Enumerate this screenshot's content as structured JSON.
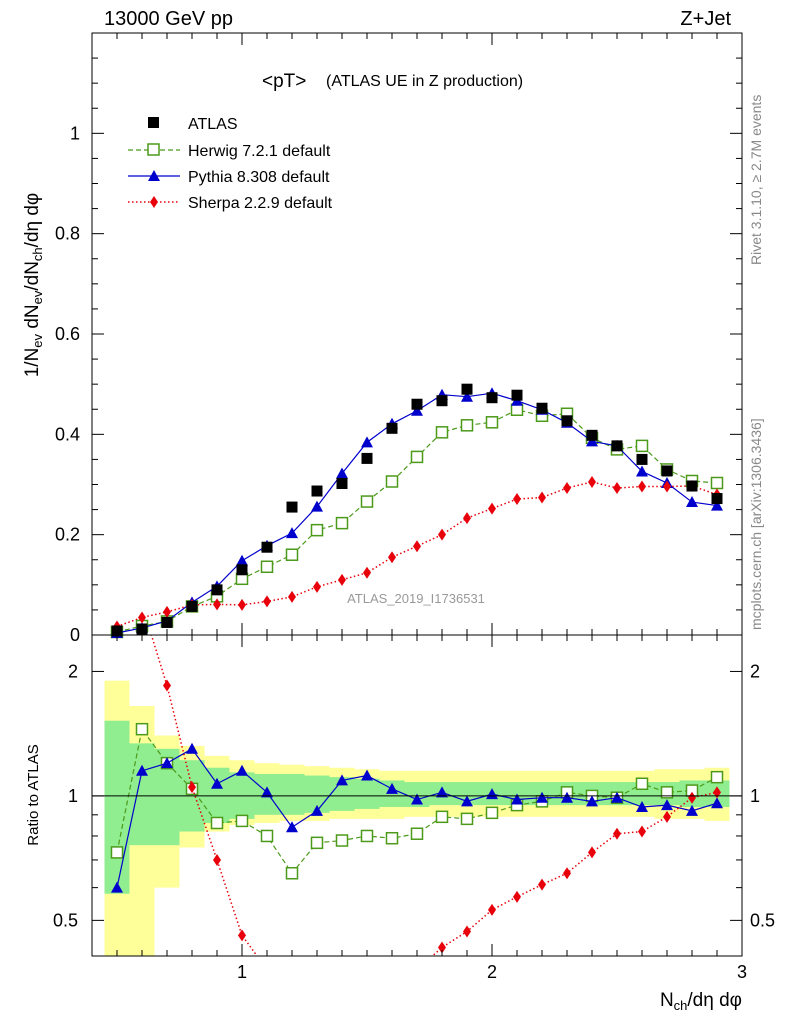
{
  "header": {
    "left": "13000 GeV pp",
    "right": "Z+Jet"
  },
  "side_text": {
    "rivet": "Rivet 3.1.10, ≥ 2.7M events",
    "mcplots": "mcplots.cern.ch [arXiv:1306.3436]"
  },
  "watermark": "ATLAS_2019_I1736531",
  "chart_data": {
    "type": "scatter",
    "title": "<pT>",
    "subtitle": "(ATLAS UE in Z production)",
    "xlabel": "N_ch/dη dφ",
    "ylabel": "1/N_ev dN_ev/dN_ch/dη dφ",
    "ratio_ylabel": "Ratio to ATLAS",
    "xlim": [
      0.4,
      3.0
    ],
    "ylim": [
      0,
      1.2
    ],
    "ratio_ylim": [
      0.41,
      2.45
    ],
    "ratio_scale": "log",
    "x_ticks": [
      "1",
      "2",
      "3"
    ],
    "y_ticks": [
      "0",
      "0.2",
      "0.4",
      "0.6",
      "0.8",
      "1"
    ],
    "ratio_ticks": [
      "0.5",
      "1",
      "2"
    ],
    "legend_position": "top-left",
    "x": [
      0.5,
      0.6,
      0.7,
      0.8,
      0.9,
      1.0,
      1.1,
      1.2,
      1.3,
      1.4,
      1.5,
      1.6,
      1.7,
      1.8,
      1.9,
      2.0,
      2.1,
      2.2,
      2.3,
      2.4,
      2.5,
      2.6,
      2.7,
      2.8,
      2.9
    ],
    "series": [
      {
        "name": "ATLAS",
        "color": "#000000",
        "marker": "square",
        "line": "none",
        "values": [
          0.008,
          0.012,
          0.025,
          0.057,
          0.09,
          0.13,
          0.175,
          0.255,
          0.287,
          0.302,
          0.352,
          0.412,
          0.46,
          0.467,
          0.49,
          0.473,
          0.478,
          0.452,
          0.427,
          0.398,
          0.377,
          0.35,
          0.327,
          0.297,
          0.272
        ]
      },
      {
        "name": "Herwig 7.2.1 default",
        "color": "#4c9a1a",
        "marker": "open-square",
        "line": "dashed",
        "values": [
          0.006,
          0.018,
          0.027,
          0.057,
          0.077,
          0.112,
          0.136,
          0.16,
          0.209,
          0.223,
          0.266,
          0.306,
          0.355,
          0.404,
          0.418,
          0.424,
          0.449,
          0.437,
          0.441,
          0.393,
          0.37,
          0.377,
          0.33,
          0.307,
          0.303
        ]
      },
      {
        "name": "Pythia 8.308 default",
        "color": "#0000cc",
        "marker": "triangle",
        "line": "solid",
        "values": [
          0.004,
          0.014,
          0.028,
          0.065,
          0.097,
          0.148,
          0.178,
          0.203,
          0.256,
          0.322,
          0.384,
          0.421,
          0.447,
          0.479,
          0.475,
          0.482,
          0.467,
          0.449,
          0.423,
          0.386,
          0.377,
          0.326,
          0.303,
          0.265,
          0.258
        ]
      },
      {
        "name": "Sherpa 2.2.9 default",
        "color": "#e8000b",
        "marker": "diamond",
        "line": "dotted",
        "values": [
          0.017,
          0.035,
          0.046,
          0.06,
          0.061,
          0.06,
          0.067,
          0.076,
          0.096,
          0.11,
          0.124,
          0.155,
          0.177,
          0.2,
          0.233,
          0.252,
          0.271,
          0.274,
          0.293,
          0.305,
          0.293,
          0.296,
          0.296,
          0.297,
          0.28
        ]
      }
    ],
    "ratio": {
      "herwig": [
        0.73,
        1.45,
        1.2,
        1.04,
        0.86,
        0.87,
        0.8,
        0.65,
        0.77,
        0.78,
        0.8,
        0.79,
        0.81,
        0.89,
        0.88,
        0.91,
        0.95,
        0.97,
        1.02,
        1.0,
        0.99,
        1.07,
        1.02,
        1.03,
        1.11
      ],
      "pythia": [
        0.6,
        1.15,
        1.2,
        1.3,
        1.07,
        1.15,
        1.02,
        0.84,
        0.92,
        1.09,
        1.12,
        1.04,
        0.98,
        1.02,
        0.97,
        1.01,
        0.98,
        0.99,
        0.99,
        0.97,
        0.99,
        0.94,
        0.95,
        0.92,
        0.96
      ],
      "sherpa": [
        2.9,
        2.9,
        1.85,
        1.05,
        0.7,
        0.46,
        0.38,
        0.3,
        0.33,
        0.36,
        0.35,
        0.38,
        0.38,
        0.43,
        0.47,
        0.53,
        0.57,
        0.61,
        0.65,
        0.73,
        0.81,
        0.82,
        0.89,
        0.99,
        1.02
      ],
      "band_stat": [
        [
          0.58,
          1.52
        ],
        [
          0.76,
          1.34
        ],
        [
          0.76,
          1.3
        ],
        [
          0.82,
          1.22
        ],
        [
          0.86,
          1.17
        ],
        [
          0.88,
          1.14
        ],
        [
          0.9,
          1.13
        ],
        [
          0.9,
          1.13
        ],
        [
          0.91,
          1.12
        ],
        [
          0.92,
          1.11
        ],
        [
          0.93,
          1.1
        ],
        [
          0.94,
          1.09
        ],
        [
          0.94,
          1.08
        ],
        [
          0.95,
          1.08
        ],
        [
          0.95,
          1.08
        ],
        [
          0.95,
          1.08
        ],
        [
          0.95,
          1.08
        ],
        [
          0.95,
          1.08
        ],
        [
          0.95,
          1.08
        ],
        [
          0.95,
          1.08
        ],
        [
          0.95,
          1.08
        ],
        [
          0.95,
          1.08
        ],
        [
          0.95,
          1.08
        ],
        [
          0.94,
          1.09
        ],
        [
          0.94,
          1.09
        ]
      ],
      "band_total": [
        [
          0.38,
          1.9
        ],
        [
          0.4,
          1.65
        ],
        [
          0.6,
          1.4
        ],
        [
          0.75,
          1.32
        ],
        [
          0.82,
          1.25
        ],
        [
          0.85,
          1.22
        ],
        [
          0.86,
          1.2
        ],
        [
          0.87,
          1.19
        ],
        [
          0.87,
          1.18
        ],
        [
          0.88,
          1.17
        ],
        [
          0.88,
          1.16
        ],
        [
          0.88,
          1.15
        ],
        [
          0.89,
          1.15
        ],
        [
          0.89,
          1.15
        ],
        [
          0.89,
          1.15
        ],
        [
          0.89,
          1.15
        ],
        [
          0.89,
          1.15
        ],
        [
          0.89,
          1.15
        ],
        [
          0.89,
          1.15
        ],
        [
          0.89,
          1.15
        ],
        [
          0.89,
          1.15
        ],
        [
          0.89,
          1.15
        ],
        [
          0.88,
          1.16
        ],
        [
          0.88,
          1.16
        ],
        [
          0.87,
          1.17
        ]
      ]
    }
  }
}
